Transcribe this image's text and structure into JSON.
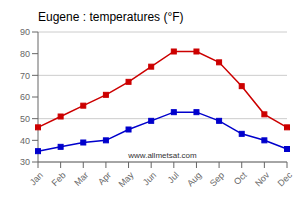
{
  "chart_data": {
    "type": "line",
    "title": "Eugene : temperatures (°F)",
    "categories": [
      "Jan",
      "Feb",
      "Mar",
      "Apr",
      "May",
      "Jun",
      "Jul",
      "Aug",
      "Sep",
      "Oct",
      "Nov",
      "Dec"
    ],
    "series": [
      {
        "color": "#cc0000",
        "marker": "square",
        "values": [
          46,
          51,
          56,
          61,
          67,
          74,
          81,
          81,
          76,
          65,
          52,
          46
        ]
      },
      {
        "color": "#0000cc",
        "marker": "square",
        "values": [
          35,
          37,
          39,
          40,
          45,
          49,
          53,
          53,
          49,
          43,
          40,
          36
        ]
      }
    ],
    "ylim": [
      30,
      90
    ],
    "yticks": [
      30,
      40,
      50,
      60,
      70,
      80,
      90
    ],
    "grid": true,
    "annotations": [
      "www.allmetsat.com"
    ]
  }
}
